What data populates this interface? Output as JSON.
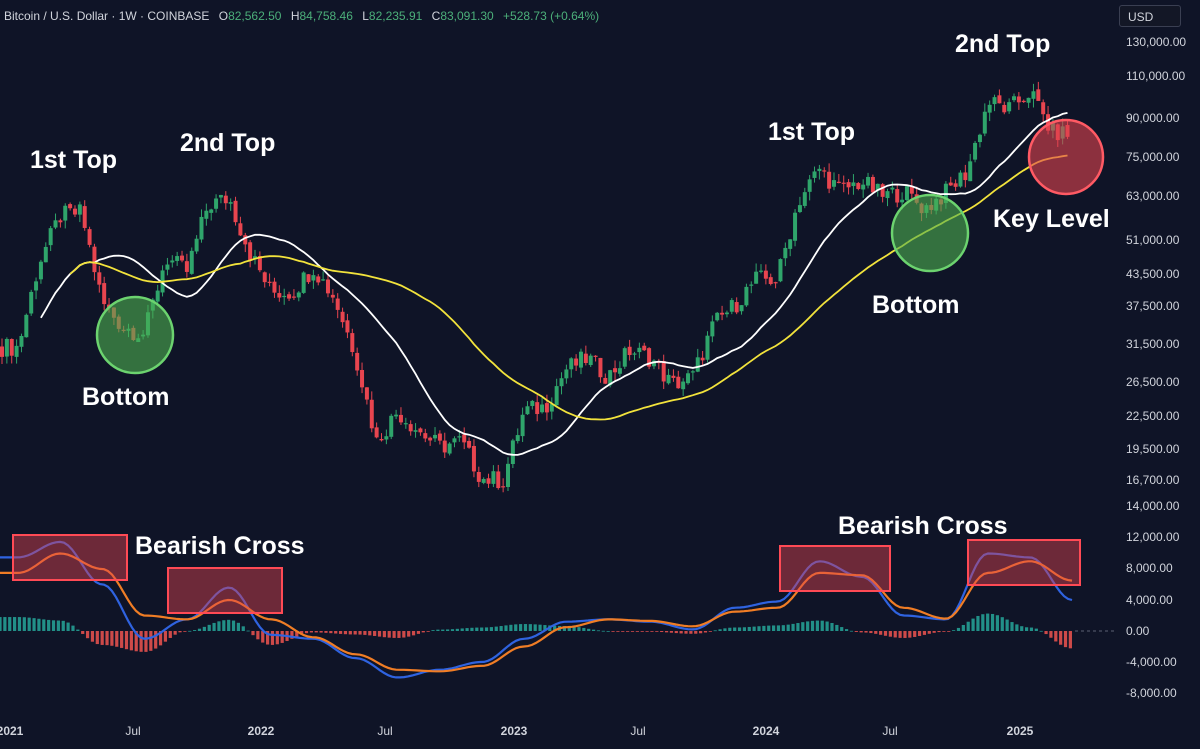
{
  "header": {
    "symbol": "Bitcoin / U.S. Dollar · 1W · COINBASE",
    "open_label": "O",
    "open": "82,562.50",
    "high_label": "H",
    "high": "84,758.46",
    "low_label": "L",
    "low": "82,235.91",
    "close_label": "C",
    "close": "83,091.30",
    "change": "+528.73 (+0.64%)"
  },
  "currency_button": "USD",
  "colors": {
    "background": "#0f1427",
    "up": "#2fa56b",
    "down": "#e8454f",
    "ma_fast": "#ffffff",
    "ma_slow": "#f2e33c",
    "macd_line": "#2f63e0",
    "signal_line": "#f07d25",
    "hist_up": "#26a69a",
    "hist_down": "#ef5350",
    "bottom_circle": "#4caf50",
    "key_level_circle": "#e0434f",
    "bearish_box": "#e0434f"
  },
  "chart_data": {
    "type": "candlestick",
    "instrument": "Bitcoin / U.S. Dollar",
    "interval": "1W",
    "exchange": "COINBASE",
    "price_axis": {
      "scale": "log",
      "ticks": [
        "130,000.00",
        "110,000.00",
        "90,000.00",
        "75,000.00",
        "63,000.00",
        "51,000.00",
        "43,500.00",
        "37,500.00",
        "31,500.00",
        "26,500.00",
        "22,500.00",
        "19,500.00",
        "16,700.00",
        "14,000.00"
      ]
    },
    "macd_axis": {
      "ticks": [
        "12,000.00",
        "8,000.00",
        "4,000.00",
        "0.00",
        "-4,000.00",
        "-8,000.00"
      ]
    },
    "time_axis": {
      "ticks": [
        "2021",
        "Jul",
        "2022",
        "Jul",
        "2023",
        "Jul",
        "2024",
        "Jul",
        "2025"
      ]
    },
    "price_path": [
      [
        "2021-01",
        31000
      ],
      [
        "2021-02",
        46000
      ],
      [
        "2021-03",
        57000
      ],
      [
        "2021-04",
        58000
      ],
      [
        "2021-05",
        38000
      ],
      [
        "2021-06",
        34000
      ],
      [
        "2021-07",
        33000
      ],
      [
        "2021-08",
        47000
      ],
      [
        "2021-09",
        44000
      ],
      [
        "2021-10",
        60000
      ],
      [
        "2021-11",
        62000
      ],
      [
        "2021-12",
        48000
      ],
      [
        "2022-01",
        40000
      ],
      [
        "2022-02",
        40000
      ],
      [
        "2022-03",
        45000
      ],
      [
        "2022-04",
        39000
      ],
      [
        "2022-05",
        30000
      ],
      [
        "2022-06",
        20000
      ],
      [
        "2022-07",
        23000
      ],
      [
        "2022-08",
        21000
      ],
      [
        "2022-09",
        19500
      ],
      [
        "2022-10",
        20000
      ],
      [
        "2022-11",
        16800
      ],
      [
        "2022-12",
        16700
      ],
      [
        "2023-01",
        23000
      ],
      [
        "2023-02",
        23500
      ],
      [
        "2023-03",
        28000
      ],
      [
        "2023-04",
        29500
      ],
      [
        "2023-05",
        27000
      ],
      [
        "2023-06",
        30500
      ],
      [
        "2023-07",
        29500
      ],
      [
        "2023-08",
        26000
      ],
      [
        "2023-09",
        27000
      ],
      [
        "2023-10",
        34500
      ],
      [
        "2023-11",
        37700
      ],
      [
        "2023-12",
        42500
      ],
      [
        "2024-01",
        42500
      ],
      [
        "2024-02",
        61000
      ],
      [
        "2024-03",
        71000
      ],
      [
        "2024-04",
        64000
      ],
      [
        "2024-05",
        67000
      ],
      [
        "2024-06",
        62500
      ],
      [
        "2024-07",
        64000
      ],
      [
        "2024-08",
        59000
      ],
      [
        "2024-09",
        63500
      ],
      [
        "2024-10",
        70000
      ],
      [
        "2024-11",
        97000
      ],
      [
        "2024-12",
        93500
      ],
      [
        "2025-01",
        102000
      ],
      [
        "2025-02",
        84500
      ],
      [
        "2025-03",
        83091
      ]
    ],
    "moving_averages": [
      {
        "name": "",
        "color": "#ffffff"
      },
      {
        "name": "",
        "color": "#f2e33c"
      }
    ],
    "macd": {
      "macd_line": [
        [
          "2021-01",
          9500
        ],
        [
          "2021-03",
          11500
        ],
        [
          "2021-05",
          6000
        ],
        [
          "2021-07",
          -1000
        ],
        [
          "2021-09",
          1500
        ],
        [
          "2021-11",
          5600
        ],
        [
          "2022-01",
          -500
        ],
        [
          "2022-03",
          -1000
        ],
        [
          "2022-05",
          -3500
        ],
        [
          "2022-07",
          -6000
        ],
        [
          "2022-09",
          -5000
        ],
        [
          "2022-11",
          -4000
        ],
        [
          "2023-01",
          -1000
        ],
        [
          "2023-03",
          1200
        ],
        [
          "2023-05",
          1500
        ],
        [
          "2023-07",
          1200
        ],
        [
          "2023-09",
          200
        ],
        [
          "2023-11",
          3000
        ],
        [
          "2024-01",
          3800
        ],
        [
          "2024-03",
          9000
        ],
        [
          "2024-05",
          7000
        ],
        [
          "2024-07",
          2000
        ],
        [
          "2024-09",
          1500
        ],
        [
          "2024-11",
          10000
        ],
        [
          "2025-01",
          9500
        ],
        [
          "2025-03",
          4000
        ]
      ],
      "signal_line": [
        [
          "2021-01",
          7500
        ],
        [
          "2021-03",
          10000
        ],
        [
          "2021-05",
          8000
        ],
        [
          "2021-07",
          2000
        ],
        [
          "2021-09",
          1500
        ],
        [
          "2021-11",
          4000
        ],
        [
          "2022-01",
          1500
        ],
        [
          "2022-03",
          -800
        ],
        [
          "2022-05",
          -3000
        ],
        [
          "2022-07",
          -5000
        ],
        [
          "2022-09",
          -5200
        ],
        [
          "2022-11",
          -4500
        ],
        [
          "2023-01",
          -2000
        ],
        [
          "2023-03",
          500
        ],
        [
          "2023-05",
          1500
        ],
        [
          "2023-07",
          1300
        ],
        [
          "2023-09",
          600
        ],
        [
          "2023-11",
          2500
        ],
        [
          "2024-01",
          3000
        ],
        [
          "2024-03",
          7500
        ],
        [
          "2024-05",
          7200
        ],
        [
          "2024-07",
          3000
        ],
        [
          "2024-09",
          1600
        ],
        [
          "2024-11",
          7500
        ],
        [
          "2025-01",
          9000
        ],
        [
          "2025-03",
          6500
        ]
      ]
    },
    "annotations": [
      {
        "text": "1st Top",
        "kind": "label"
      },
      {
        "text": "2nd Top",
        "kind": "label"
      },
      {
        "text": "Bottom",
        "kind": "label"
      },
      {
        "text": "1st Top",
        "kind": "label"
      },
      {
        "text": "Bottom",
        "kind": "label"
      },
      {
        "text": "2nd Top",
        "kind": "label"
      },
      {
        "text": "Key Level",
        "kind": "label"
      },
      {
        "text": "Bearish Cross",
        "kind": "label"
      },
      {
        "text": "Bearish Cross",
        "kind": "label"
      }
    ]
  }
}
